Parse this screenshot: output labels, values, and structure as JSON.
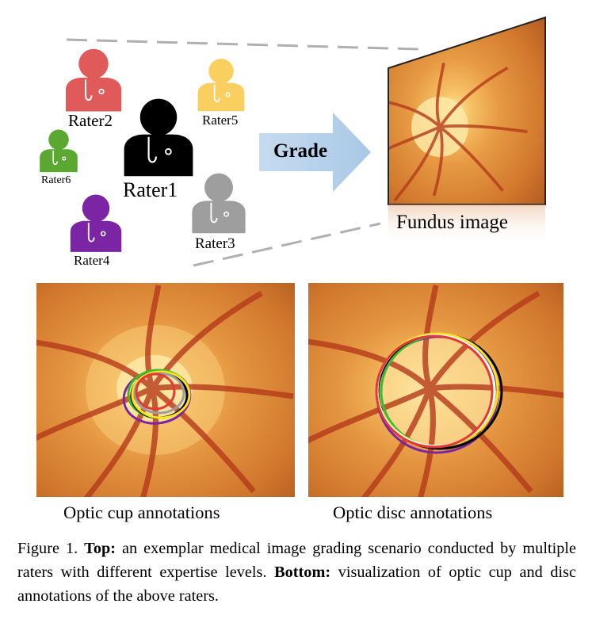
{
  "top": {
    "raters": [
      {
        "label": "Rater1",
        "color": "#000000"
      },
      {
        "label": "Rater2",
        "color": "#e15a5a"
      },
      {
        "label": "Rater3",
        "color": "#9e9e9e"
      },
      {
        "label": "Rater4",
        "color": "#7b25a4"
      },
      {
        "label": "Rater5",
        "color": "#f9d05f"
      },
      {
        "label": "Rater6",
        "color": "#5aa832"
      }
    ],
    "arrow_label": "Grade",
    "fundus_label": "Fundus image"
  },
  "bottom": {
    "cup_caption": "Optic cup annotations",
    "disc_caption": "Optic disc annotations",
    "annotation_colors": [
      "#000000",
      "#e53935",
      "#9e9e9e",
      "#7b25a4",
      "#f5e51a",
      "#3dbb2a",
      "#ffffff"
    ]
  },
  "figure_caption": {
    "label": "Figure 1.",
    "top_bold": "Top:",
    "top_text": "an exemplar medical image grading scenario conducted by multiple raters with different expertise levels.",
    "bottom_bold": "Bottom:",
    "bottom_text": "visualization of optic cup and disc annotations of the above raters."
  }
}
